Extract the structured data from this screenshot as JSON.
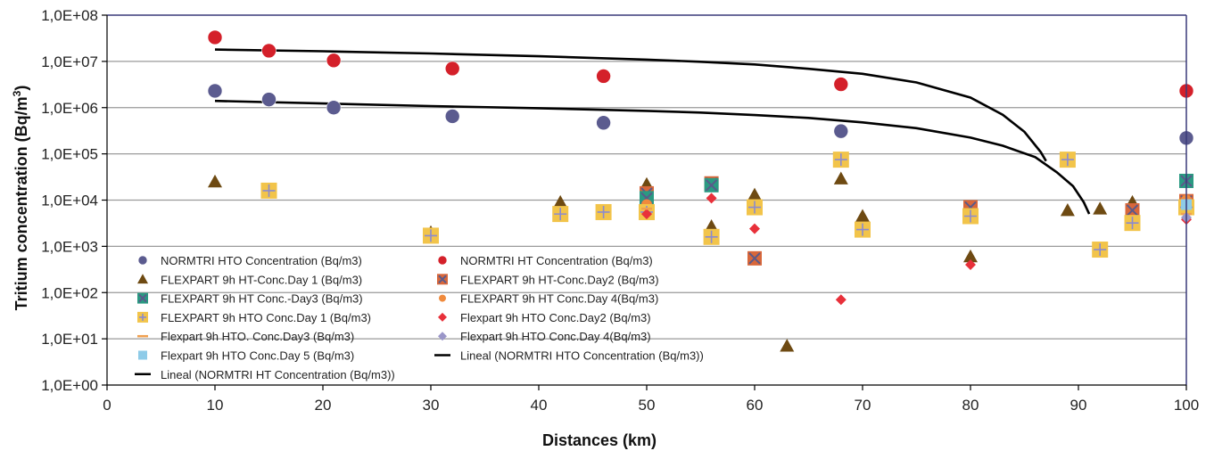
{
  "chart_data": {
    "type": "scatter",
    "xlabel": "Distances (km)",
    "ylabel_main": "Tritium concentration (Bq/m",
    "ylabel_sup": "3",
    "ylabel_close": ")",
    "xlim": [
      0,
      100
    ],
    "ylim": [
      1,
      100000000
    ],
    "y_scale": "log",
    "grid": true,
    "x_ticks": [
      0,
      10,
      20,
      30,
      40,
      50,
      60,
      70,
      80,
      90,
      100
    ],
    "x_tick_labels": [
      "0",
      "10",
      "20",
      "30",
      "40",
      "50",
      "60",
      "70",
      "80",
      "90",
      "100"
    ],
    "y_ticks": [
      1,
      10,
      100,
      1000,
      10000,
      100000,
      1000000,
      10000000,
      100000000
    ],
    "y_tick_labels": [
      "1,0E+00",
      "1,0E+01",
      "1,0E+02",
      "1,0E+03",
      "1,0E+04",
      "1,0E+05",
      "1,0E+06",
      "1,0E+07",
      "1,0E+08"
    ],
    "series": [
      {
        "name": "NORMTRI  HTO  Concentration (Bq/m3)",
        "marker": "circle",
        "color": "#5b5b8f",
        "points": [
          [
            10,
            2300000
          ],
          [
            15,
            1500000
          ],
          [
            21,
            1000000
          ],
          [
            32,
            650000
          ],
          [
            46,
            470000
          ],
          [
            68,
            310000
          ],
          [
            100,
            220000
          ]
        ]
      },
      {
        "name": "NORMTRI  HT Concentration (Bq/m3)",
        "marker": "circle",
        "color": "#d4202a",
        "points": [
          [
            10,
            33000000
          ],
          [
            15,
            17000000
          ],
          [
            21,
            10500000
          ],
          [
            32,
            7000000
          ],
          [
            46,
            4800000
          ],
          [
            68,
            3200000
          ],
          [
            100,
            2300000
          ]
        ]
      },
      {
        "name": "FLEXPART 9h  HT-Conc.Day 1 (Bq/m3)",
        "marker": "triangle",
        "color": "#6e4a12",
        "points": [
          [
            10,
            25000
          ],
          [
            30,
            2000
          ],
          [
            42,
            9000
          ],
          [
            50,
            22000
          ],
          [
            56,
            2700
          ],
          [
            60,
            13000
          ],
          [
            63,
            7
          ],
          [
            68,
            29000
          ],
          [
            70,
            4500
          ],
          [
            80,
            600
          ],
          [
            89,
            6000
          ],
          [
            92,
            6500
          ],
          [
            95,
            9000
          ],
          [
            100,
            9000
          ]
        ]
      },
      {
        "name": "FLEXPART 9h HT-Conc.Day2 (Bq/m3)",
        "marker": "xsquare",
        "color": "#d8673a",
        "points": [
          [
            50,
            14000
          ],
          [
            56,
            23000
          ],
          [
            60,
            550
          ],
          [
            80,
            7000
          ],
          [
            95,
            6000
          ],
          [
            100,
            9500
          ]
        ]
      },
      {
        "name": "FLEXPART 9h HT Conc.-Day3 (Bq/m3)",
        "marker": "xsquare",
        "color": "#2a9a82",
        "points": [
          [
            50,
            11000
          ],
          [
            56,
            21000
          ],
          [
            100,
            26000
          ]
        ]
      },
      {
        "name": "FLEXPART 9h  HT Conc.Day 4(Bq/m3)",
        "marker": "circle-small",
        "color": "#f08a3c",
        "points": [
          [
            50,
            8000
          ],
          [
            100,
            10000
          ]
        ]
      },
      {
        "name": "FLEXPART 9h HTO Conc.Day 1 (Bq/m3)",
        "marker": "plussquare",
        "color": "#f2c44a",
        "points": [
          [
            15,
            16000
          ],
          [
            30,
            1700
          ],
          [
            42,
            5000
          ],
          [
            46,
            5500
          ],
          [
            50,
            5500
          ],
          [
            56,
            1600
          ],
          [
            60,
            7000
          ],
          [
            68,
            75000
          ],
          [
            70,
            2300
          ],
          [
            80,
            4500
          ],
          [
            89,
            75000
          ],
          [
            92,
            850
          ],
          [
            95,
            3200
          ],
          [
            100,
            7000
          ]
        ]
      },
      {
        "name": "Flexpart 9h  HTO Conc.Day2 (Bq/m3)",
        "marker": "diamond",
        "color": "#e8303a",
        "points": [
          [
            50,
            5000
          ],
          [
            56,
            11000
          ],
          [
            60,
            2400
          ],
          [
            68,
            70
          ],
          [
            80,
            400
          ],
          [
            100,
            3800
          ]
        ]
      },
      {
        "name": "Flexpart 9h HTO. Conc.Day3 (Bq/m3)",
        "marker": "dash",
        "color": "#f0a050",
        "points": [
          [
            50,
            6500
          ],
          [
            100,
            5000
          ]
        ]
      },
      {
        "name": "Flexpart 9h  HTO Conc.Day 4(Bq/m3)",
        "marker": "diamond",
        "color": "#9a96c8",
        "points": [
          [
            100,
            4200
          ]
        ]
      },
      {
        "name": "Flexpart 9h  HTO Conc.Day 5 (Bq/m3)",
        "marker": "square",
        "color": "#8ecbe8",
        "points": [
          [
            100,
            8000
          ]
        ]
      }
    ],
    "trendlines": [
      {
        "name": "Lineal (NORMTRI  HTO  Concentration (Bq/m3))",
        "color": "#000000",
        "points": [
          [
            10,
            1400000
          ],
          [
            20,
            1230000
          ],
          [
            30,
            1080000
          ],
          [
            40,
            970000
          ],
          [
            50,
            850000
          ],
          [
            55,
            780000
          ],
          [
            60,
            690000
          ],
          [
            65,
            600000
          ],
          [
            70,
            480000
          ],
          [
            75,
            360000
          ],
          [
            80,
            225000
          ],
          [
            83,
            150000
          ],
          [
            86,
            85000
          ],
          [
            88,
            40000
          ],
          [
            89.5,
            20000
          ],
          [
            90.5,
            9000
          ],
          [
            91,
            5000
          ]
        ]
      },
      {
        "name": "Lineal (NORMTRI  HT Concentration (Bq/m3))",
        "color": "#000000",
        "points": [
          [
            10,
            18000000
          ],
          [
            20,
            16600000
          ],
          [
            30,
            14800000
          ],
          [
            40,
            12900000
          ],
          [
            50,
            10900000
          ],
          [
            55,
            9800000
          ],
          [
            60,
            8600000
          ],
          [
            65,
            6900000
          ],
          [
            70,
            5400000
          ],
          [
            75,
            3500000
          ],
          [
            80,
            1650000
          ],
          [
            83,
            700000
          ],
          [
            85,
            300000
          ],
          [
            86.5,
            110000
          ],
          [
            87,
            70000
          ]
        ]
      }
    ],
    "legend": {
      "placement": "bottom-left",
      "left_column": [
        {
          "label": "NORMTRI  HTO  Concentration (Bq/m3)",
          "marker": "circle",
          "color": "#5b5b8f"
        },
        {
          "label": "FLEXPART 9h  HT-Conc.Day 1 (Bq/m3)",
          "marker": "triangle",
          "color": "#6e4a12"
        },
        {
          "label": "FLEXPART 9h HT Conc.-Day3 (Bq/m3)",
          "marker": "xsquare",
          "color": "#2a9a82"
        },
        {
          "label": "FLEXPART 9h HTO Conc.Day 1 (Bq/m3)",
          "marker": "plussquare",
          "color": "#f2c44a"
        },
        {
          "label": "Flexpart 9h HTO. Conc.Day3 (Bq/m3)",
          "marker": "dash",
          "color": "#f0a050"
        },
        {
          "label": "Flexpart 9h  HTO Conc.Day 5 (Bq/m3)",
          "marker": "square",
          "color": "#8ecbe8"
        },
        {
          "label": "Lineal (NORMTRI  HT Concentration (Bq/m3))",
          "marker": "line",
          "color": "#000000"
        }
      ],
      "right_column": [
        {
          "label": "NORMTRI  HT Concentration (Bq/m3)",
          "marker": "circle",
          "color": "#d4202a"
        },
        {
          "label": "FLEXPART 9h HT-Conc.Day2 (Bq/m3)",
          "marker": "xsquare",
          "color": "#d8673a"
        },
        {
          "label": "FLEXPART 9h  HT Conc.Day 4(Bq/m3)",
          "marker": "circle-small",
          "color": "#f08a3c"
        },
        {
          "label": "Flexpart 9h  HTO Conc.Day2 (Bq/m3)",
          "marker": "diamond",
          "color": "#e8303a"
        },
        {
          "label": "Flexpart 9h  HTO Conc.Day 4(Bq/m3)",
          "marker": "diamond",
          "color": "#9a96c8"
        },
        {
          "label": "Lineal (NORMTRI  HTO  Concentration (Bq/m3))",
          "marker": "line",
          "color": "#000000"
        }
      ]
    },
    "colors": {
      "frame": "#3a3a7a",
      "grid": "#9a9a9a",
      "axis": "#000000"
    }
  }
}
